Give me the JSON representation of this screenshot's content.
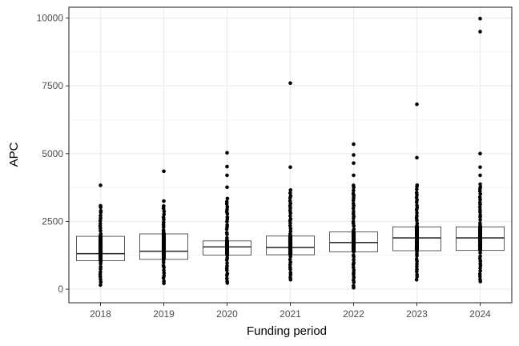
{
  "chart_data": {
    "type": "boxplot",
    "xlabel": "Funding period",
    "ylabel": "APC",
    "ylim": [
      -500,
      10400
    ],
    "yticks": [
      0,
      2500,
      5000,
      7500,
      10000
    ],
    "grid": true,
    "categories": [
      "2018",
      "2019",
      "2020",
      "2021",
      "2022",
      "2023",
      "2024"
    ],
    "boxes": [
      {
        "q1": 1050,
        "median": 1310,
        "q3": 1950
      },
      {
        "q1": 1100,
        "median": 1400,
        "q3": 2040
      },
      {
        "q1": 1260,
        "median": 1560,
        "q3": 1780
      },
      {
        "q1": 1270,
        "median": 1540,
        "q3": 1960
      },
      {
        "q1": 1380,
        "median": 1720,
        "q3": 2110
      },
      {
        "q1": 1420,
        "median": 1890,
        "q3": 2300
      },
      {
        "q1": 1430,
        "median": 1890,
        "q3": 2300
      }
    ],
    "points": [
      {
        "min": 150,
        "max": 3100,
        "outliers": [
          3830
        ]
      },
      {
        "min": 180,
        "max": 3050,
        "outliers": [
          3250,
          4350
        ]
      },
      {
        "min": 180,
        "max": 3330,
        "outliers": [
          3760,
          4200,
          4520,
          5030
        ]
      },
      {
        "min": 250,
        "max": 3650,
        "outliers": [
          4500,
          7600
        ]
      },
      {
        "min": 20,
        "max": 3830,
        "outliers": [
          4200,
          4650,
          4950,
          5350
        ]
      },
      {
        "min": 300,
        "max": 3860,
        "outliers": [
          4850,
          6820
        ]
      },
      {
        "min": 250,
        "max": 3880,
        "outliers": [
          4200,
          4500,
          5000,
          9500,
          9980
        ]
      }
    ]
  },
  "colors": {
    "panel_border": "#333333",
    "grid": "#ebebeb",
    "box_line": "#333333",
    "point": "#000000"
  }
}
